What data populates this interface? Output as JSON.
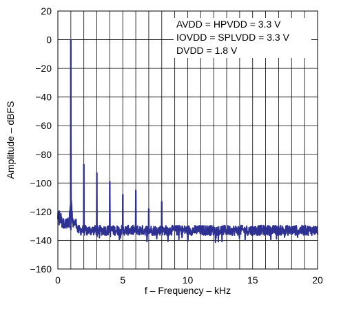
{
  "chart_data": {
    "type": "line",
    "title": "",
    "xlabel": "f – Frequency – kHz",
    "ylabel": "Amplitude – dBFS",
    "xlim": [
      0,
      20
    ],
    "ylim": [
      -160,
      20
    ],
    "xticks": [
      0,
      5,
      10,
      15,
      20
    ],
    "yticks": [
      20,
      0,
      -20,
      -40,
      -60,
      -80,
      -100,
      -120,
      -140,
      -160
    ],
    "xtick_labels": [
      "0",
      "5",
      "10",
      "15",
      "20"
    ],
    "ytick_labels": [
      "20",
      "0",
      "−20",
      "−40",
      "−60",
      "−80",
      "−100",
      "−120",
      "−140",
      "−160"
    ],
    "grid": true,
    "annotations": [
      "AVDD = HPVDD = 3.3 V",
      "IOVDD = SPLVDD = 3.3 V",
      "DVDD = 1.8 V"
    ],
    "series": [
      {
        "color": "#2e3192",
        "noise_floor": -133,
        "noise_floor_near_dc": -128,
        "peaks": [
          {
            "x": 1.0,
            "y": 0
          },
          {
            "x": 2.0,
            "y": -87
          },
          {
            "x": 3.0,
            "y": -93
          },
          {
            "x": 4.0,
            "y": -99
          },
          {
            "x": 5.0,
            "y": -108
          },
          {
            "x": 6.0,
            "y": -105
          },
          {
            "x": 7.0,
            "y": -118
          },
          {
            "x": 8.0,
            "y": -113
          }
        ]
      }
    ]
  }
}
